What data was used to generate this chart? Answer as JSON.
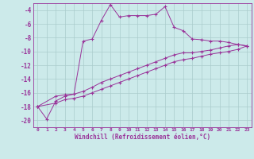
{
  "xlabel": "Windchill (Refroidissement éolien,°C)",
  "background_color": "#cceaea",
  "grid_color": "#aacccc",
  "line_color": "#993399",
  "xlim": [
    -0.5,
    23.5
  ],
  "ylim": [
    -21,
    -3
  ],
  "yticks": [
    -20,
    -18,
    -16,
    -14,
    -12,
    -10,
    -8,
    -6,
    -4
  ],
  "xticks": [
    0,
    1,
    2,
    3,
    4,
    5,
    6,
    7,
    8,
    9,
    10,
    11,
    12,
    13,
    14,
    15,
    16,
    17,
    18,
    19,
    20,
    21,
    22,
    23
  ],
  "curve1_x": [
    0,
    1,
    2,
    3,
    4,
    5,
    6,
    7,
    8,
    9,
    10,
    11,
    12,
    13,
    14,
    15,
    16,
    17,
    18,
    19,
    20,
    21,
    22,
    23
  ],
  "curve1_y": [
    -18,
    -19.8,
    -17.2,
    -16.5,
    -16.2,
    -8.5,
    -8.2,
    -5.5,
    -3.2,
    -5.0,
    -4.8,
    -4.8,
    -4.8,
    -4.6,
    -3.5,
    -6.5,
    -7.0,
    -8.2,
    -8.3,
    -8.5,
    -8.5,
    -8.7,
    -9.0,
    -9.2
  ],
  "curve2_x": [
    0,
    2,
    3,
    4,
    5,
    6,
    7,
    8,
    9,
    10,
    11,
    12,
    13,
    14,
    15,
    16,
    17,
    18,
    19,
    20,
    21,
    22,
    23
  ],
  "curve2_y": [
    -18.0,
    -16.5,
    -16.3,
    -16.2,
    -15.8,
    -15.2,
    -14.5,
    -14.0,
    -13.5,
    -13.0,
    -12.5,
    -12.0,
    -11.5,
    -11.0,
    -10.5,
    -10.2,
    -10.2,
    -10.0,
    -9.8,
    -9.5,
    -9.2,
    -9.0,
    -9.2
  ],
  "curve3_x": [
    0,
    2,
    3,
    4,
    5,
    6,
    7,
    8,
    9,
    10,
    11,
    12,
    13,
    14,
    15,
    16,
    17,
    18,
    19,
    20,
    21,
    22,
    23
  ],
  "curve3_y": [
    -18.0,
    -17.5,
    -17.0,
    -16.8,
    -16.5,
    -16.0,
    -15.5,
    -15.0,
    -14.5,
    -14.0,
    -13.5,
    -13.0,
    -12.5,
    -12.0,
    -11.5,
    -11.2,
    -11.0,
    -10.7,
    -10.4,
    -10.2,
    -10.0,
    -9.7,
    -9.2
  ]
}
